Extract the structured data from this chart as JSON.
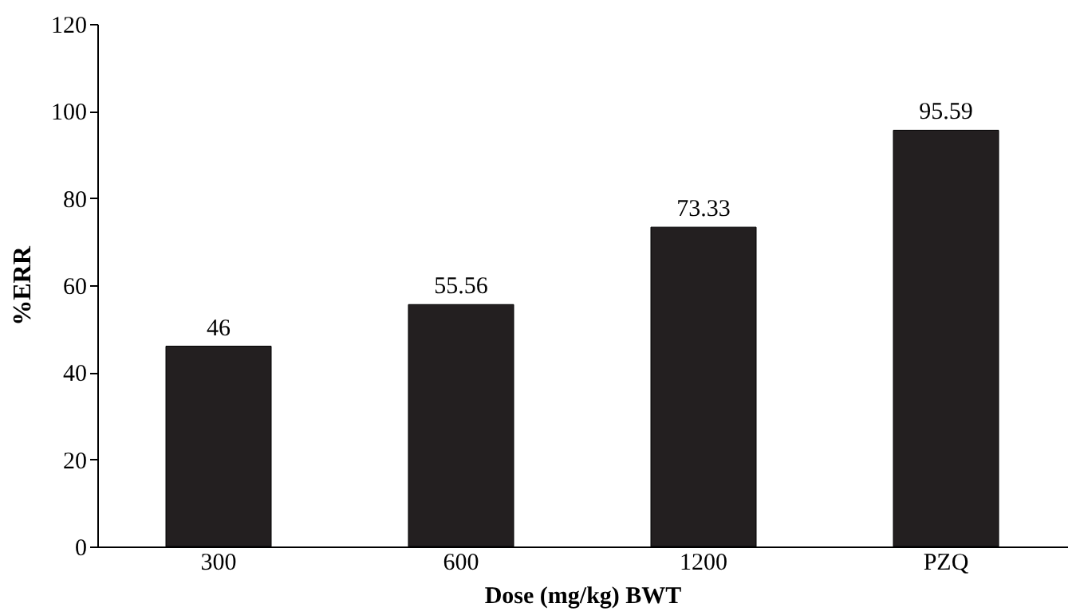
{
  "chart_data": {
    "type": "bar",
    "xlabel": "Dose (mg/kg) BWT",
    "ylabel": "%ERR",
    "categories": [
      "300",
      "600",
      "1200",
      "PZQ"
    ],
    "values": [
      46,
      55.56,
      73.33,
      95.59
    ],
    "color": "#231f20",
    "ylim": [
      0,
      120
    ],
    "yticks": [
      0,
      20,
      40,
      60,
      80,
      100,
      120
    ],
    "grid": false,
    "data_labels": true
  }
}
